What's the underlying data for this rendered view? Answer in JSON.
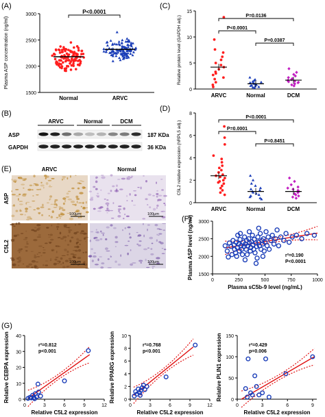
{
  "panels": {
    "A": "(A)",
    "B": "(B)",
    "C": "(C)",
    "D": "(D)",
    "E": "(E)",
    "F": "(F)",
    "G": "(G)"
  },
  "colors": {
    "normal": "#ff1f1f",
    "arvc": "#1a3db8",
    "dcm": "#c21fc2",
    "scatter": "#1a3db8",
    "fit": "#e01010"
  },
  "blot": {
    "groups": [
      "ARVC",
      "Normal",
      "DCM"
    ],
    "rows": [
      {
        "label": "ASP",
        "size": "187 KDa"
      },
      {
        "label": "GAPDH",
        "size": "36 KDa"
      }
    ],
    "band_intensity": {
      "ASP": [
        0.95,
        0.9,
        0.55,
        0.3,
        0.2,
        0.25,
        0.45,
        0.5,
        0.85
      ],
      "GAPDH": [
        0.9,
        0.9,
        0.9,
        0.9,
        0.9,
        0.9,
        0.9,
        0.9,
        0.9
      ]
    }
  },
  "histology": {
    "columns": [
      "ARVC",
      "Normal"
    ],
    "rows": [
      "ASP",
      "C5L2"
    ],
    "scale": "100μm"
  },
  "chart_data": [
    {
      "id": "A",
      "type": "scatter",
      "ylabel": "Plasma ASP  concentration (ng/ml)",
      "categories": [
        "Normal",
        "ARVC"
      ],
      "yticks": [
        1500,
        2000,
        2500,
        3000
      ],
      "ylim": [
        1500,
        3000
      ],
      "series": [
        {
          "name": "Normal",
          "center": 2180,
          "sd": 190,
          "n": 110,
          "min": 1640,
          "max": 2680
        },
        {
          "name": "ARVC",
          "center": 2320,
          "sd": 200,
          "n": 115,
          "min": 1750,
          "max": 2820
        }
      ],
      "annotations": [
        {
          "text": "P<0.0001"
        }
      ]
    },
    {
      "id": "C",
      "type": "scatter",
      "ylabel": "Relative protein level (GAPDH adj.)",
      "categories": [
        "ARVC",
        "Normal",
        "DCM"
      ],
      "yticks": [
        0,
        5,
        10,
        15
      ],
      "ylim": [
        0,
        15
      ],
      "series": [
        {
          "name": "ARVC",
          "center": 4.2,
          "values": [
            13.8,
            9.5,
            7.6,
            7.0,
            6.2,
            5.6,
            5.0,
            4.6,
            4.2,
            3.8,
            3.3,
            3.0,
            2.7,
            2.2,
            1.9,
            1.3,
            0.8,
            0.4
          ]
        },
        {
          "name": "Normal",
          "center": 1.0,
          "values": [
            2.2,
            1.8,
            1.6,
            1.4,
            1.3,
            1.2,
            1.1,
            1.0,
            0.9,
            0.8,
            0.7,
            0.6,
            0.5,
            0.4,
            0.3,
            0.2
          ]
        },
        {
          "name": "DCM",
          "center": 1.7,
          "values": [
            3.9,
            3.2,
            2.8,
            2.5,
            2.2,
            2.0,
            1.8,
            1.7,
            1.6,
            1.5,
            1.4,
            1.3,
            1.2,
            1.0,
            0.8,
            0.6
          ]
        }
      ],
      "annotations": [
        {
          "text": "P=0.0136"
        },
        {
          "text": "P<0.0001"
        },
        {
          "text": "P=0.0387"
        }
      ]
    },
    {
      "id": "D",
      "type": "scatter",
      "ylabel": "C5L2 relative expression (hRPL5 adj.)",
      "categories": [
        "ARVC",
        "Normal",
        "DCM"
      ],
      "yticks": [
        0,
        2,
        4,
        6,
        8
      ],
      "ylim": [
        0,
        8
      ],
      "series": [
        {
          "name": "ARVC",
          "center": 2.4,
          "values": [
            6.8,
            5.8,
            5.2,
            4.2,
            3.9,
            3.6,
            3.3,
            3.1,
            2.9,
            2.7,
            2.5,
            2.4,
            2.3,
            2.2,
            2.0,
            1.9,
            1.8,
            1.7,
            1.5,
            1.3,
            1.1,
            0.9,
            0.7
          ]
        },
        {
          "name": "Normal",
          "center": 1.0,
          "values": [
            2.4,
            2.0,
            1.7,
            1.5,
            1.3,
            1.2,
            1.1,
            1.0,
            0.9,
            0.8,
            0.7,
            0.6,
            0.5,
            0.4,
            0.3
          ]
        },
        {
          "name": "DCM",
          "center": 1.0,
          "values": [
            2.2,
            1.9,
            1.6,
            1.4,
            1.3,
            1.2,
            1.1,
            1.0,
            0.9,
            0.8,
            0.7,
            0.6,
            0.5,
            0.4
          ]
        }
      ],
      "annotations": [
        {
          "text": "P<0.0001"
        },
        {
          "text": "P=0.0001"
        },
        {
          "text": "P=0.8451"
        }
      ]
    },
    {
      "id": "F",
      "type": "scatter",
      "xlabel": "Plasma sC5b-9 level (ng/mL)",
      "ylabel": "Plasma ASP level (ng/ml)",
      "xticks": [
        0,
        250,
        500,
        750,
        1000
      ],
      "yticks": [
        1500,
        2000,
        2500,
        3000
      ],
      "xlim": [
        0,
        1000
      ],
      "ylim": [
        1500,
        3000
      ],
      "fit": {
        "x": [
          120,
          1000
        ],
        "y": [
          2240,
          2660
        ]
      },
      "stats": [
        "r²=0.190",
        "P<0.0001"
      ],
      "points": [
        [
          140,
          2150
        ],
        [
          160,
          2380
        ],
        [
          175,
          2280
        ],
        [
          185,
          2050
        ],
        [
          195,
          2450
        ],
        [
          205,
          2320
        ],
        [
          210,
          2200
        ],
        [
          220,
          2100
        ],
        [
          225,
          2400
        ],
        [
          235,
          2250
        ],
        [
          240,
          2600
        ],
        [
          250,
          2350
        ],
        [
          255,
          2150
        ],
        [
          262,
          2480
        ],
        [
          270,
          2300
        ],
        [
          278,
          2200
        ],
        [
          285,
          2050
        ],
        [
          292,
          2400
        ],
        [
          300,
          2280
        ],
        [
          305,
          2550
        ],
        [
          312,
          2350
        ],
        [
          320,
          2200
        ],
        [
          325,
          2450
        ],
        [
          330,
          2050
        ],
        [
          338,
          2300
        ],
        [
          345,
          2500
        ],
        [
          352,
          2380
        ],
        [
          360,
          2150
        ],
        [
          365,
          2250
        ],
        [
          372,
          2420
        ],
        [
          380,
          2600
        ],
        [
          385,
          2330
        ],
        [
          392,
          2200
        ],
        [
          398,
          2480
        ],
        [
          405,
          2100
        ],
        [
          412,
          2380
        ],
        [
          420,
          2280
        ],
        [
          425,
          1950
        ],
        [
          432,
          2550
        ],
        [
          440,
          2400
        ],
        [
          448,
          2300
        ],
        [
          455,
          2650
        ],
        [
          462,
          2200
        ],
        [
          470,
          2450
        ],
        [
          478,
          2350
        ],
        [
          485,
          2500
        ],
        [
          492,
          2150
        ],
        [
          500,
          2400
        ],
        [
          510,
          2700
        ],
        [
          520,
          2300
        ],
        [
          530,
          2550
        ],
        [
          540,
          2200
        ],
        [
          555,
          2450
        ],
        [
          570,
          2600
        ],
        [
          585,
          2350
        ],
        [
          600,
          2500
        ],
        [
          615,
          2750
        ],
        [
          630,
          2300
        ],
        [
          650,
          2550
        ],
        [
          680,
          2450
        ],
        [
          700,
          2650
        ],
        [
          730,
          2400
        ],
        [
          760,
          2550
        ],
        [
          800,
          2600
        ],
        [
          850,
          2500
        ],
        [
          900,
          2650
        ],
        [
          970,
          2600
        ],
        [
          150,
          1980
        ],
        [
          230,
          2000
        ],
        [
          310,
          1900
        ],
        [
          415,
          1800
        ],
        [
          480,
          2000
        ],
        [
          265,
          2650
        ],
        [
          350,
          2700
        ],
        [
          440,
          2800
        ],
        [
          120,
          2300
        ]
      ]
    },
    {
      "id": "G1",
      "type": "scatter",
      "xlabel": "Relative C5L2 expression",
      "ylabel": "Relative CEBPA expression",
      "xticks": [
        0,
        3,
        6,
        9,
        12
      ],
      "yticks": [
        0,
        10,
        20,
        30,
        40
      ],
      "xlim": [
        0,
        12
      ],
      "ylim": [
        0,
        40
      ],
      "fit": {
        "x": [
          0.5,
          9.8
        ],
        "y": [
          0.5,
          28
        ]
      },
      "stats": [
        "r²=0.812",
        "p<0.001"
      ],
      "points": [
        [
          0.5,
          0.5
        ],
        [
          0.8,
          1.2
        ],
        [
          1.0,
          0.8
        ],
        [
          1.2,
          2.5
        ],
        [
          1.4,
          1.0
        ],
        [
          1.6,
          3.5
        ],
        [
          1.8,
          1.5
        ],
        [
          2.0,
          9.5
        ],
        [
          2.1,
          4.5
        ],
        [
          2.4,
          2.0
        ],
        [
          1.5,
          0.3
        ],
        [
          6.0,
          11.5
        ],
        [
          9.6,
          30.5
        ]
      ]
    },
    {
      "id": "G2",
      "type": "scatter",
      "xlabel": "Relative C5L2 expression",
      "ylabel": "Relative PPARG expression",
      "xticks": [
        0,
        3,
        6,
        9,
        12
      ],
      "yticks": [
        0,
        2,
        4,
        6,
        8,
        10
      ],
      "xlim": [
        0,
        12
      ],
      "ylim": [
        0,
        10
      ],
      "fit": {
        "x": [
          0.5,
          9.5
        ],
        "y": [
          0.6,
          8.2
        ]
      },
      "stats": [
        "r²=0.768",
        "p<0.001"
      ],
      "points": [
        [
          0.6,
          0.5
        ],
        [
          0.8,
          1.2
        ],
        [
          1.0,
          0.8
        ],
        [
          1.2,
          1.6
        ],
        [
          1.4,
          1.0
        ],
        [
          1.6,
          1.4
        ],
        [
          1.8,
          1.8
        ],
        [
          2.0,
          2.2
        ],
        [
          2.2,
          1.5
        ],
        [
          2.5,
          2.0
        ],
        [
          5.4,
          3.5
        ],
        [
          9.8,
          8.5
        ],
        [
          1.5,
          0.6
        ]
      ]
    },
    {
      "id": "G3",
      "type": "scatter",
      "xlabel": "Relative C5L2 expression",
      "ylabel": "Relative PLIN1 expression",
      "xticks": [
        0,
        3,
        6,
        9
      ],
      "yticks": [
        0,
        50,
        100,
        150
      ],
      "xlim": [
        0,
        9.5
      ],
      "ylim": [
        0,
        150
      ],
      "fit": {
        "x": [
          0.5,
          9.2
        ],
        "y": [
          0,
          100
        ]
      },
      "stats": [
        "r²=0.429",
        "p=0.006"
      ],
      "points": [
        [
          1.0,
          25
        ],
        [
          1.3,
          95
        ],
        [
          1.6,
          15
        ],
        [
          1.8,
          10
        ],
        [
          2.1,
          55
        ],
        [
          2.3,
          30
        ],
        [
          2.6,
          10
        ],
        [
          3.0,
          15
        ],
        [
          3.4,
          95
        ],
        [
          3.8,
          5
        ],
        [
          5.8,
          60
        ],
        [
          9.0,
          100
        ],
        [
          1.2,
          5
        ]
      ]
    }
  ]
}
